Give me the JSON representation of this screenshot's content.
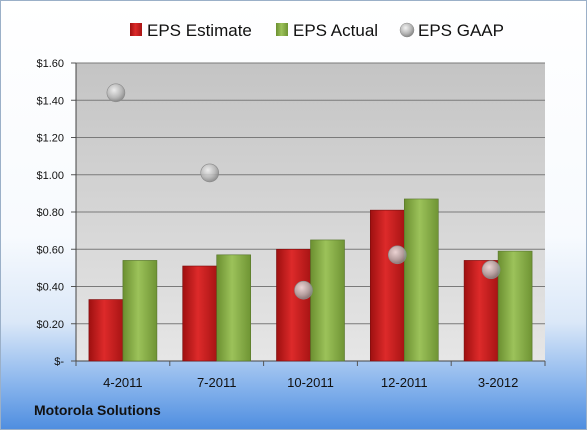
{
  "chart_data": {
    "type": "bar",
    "categories": [
      "4-2011",
      "7-2011",
      "10-2011",
      "12-2011",
      "3-2012"
    ],
    "series": [
      {
        "name": "EPS Estimate",
        "kind": "bar",
        "color": "#cc1f1f",
        "values": [
          0.33,
          0.51,
          0.6,
          0.81,
          0.54
        ]
      },
      {
        "name": "EPS Actual",
        "kind": "bar",
        "color": "#8ab04a",
        "values": [
          0.54,
          0.57,
          0.65,
          0.87,
          0.59
        ]
      },
      {
        "name": "EPS GAAP",
        "kind": "scatter",
        "color": "#a8a8a8",
        "values": [
          1.44,
          1.01,
          0.38,
          0.57,
          0.49
        ]
      }
    ],
    "ylim": [
      0,
      1.6
    ],
    "yticks": [
      {
        "value": 1.6,
        "label": "$1.60"
      },
      {
        "value": 1.4,
        "label": "$1.40"
      },
      {
        "value": 1.2,
        "label": "$1.20"
      },
      {
        "value": 1.0,
        "label": "$1.00"
      },
      {
        "value": 0.8,
        "label": "$0.80"
      },
      {
        "value": 0.6,
        "label": "$0.60"
      },
      {
        "value": 0.4,
        "label": "$0.40"
      },
      {
        "value": 0.2,
        "label": "$0.20"
      },
      {
        "value": 0.0,
        "label": "$-"
      }
    ],
    "grid": true,
    "legend_position": "top"
  },
  "company": "Motorola Solutions"
}
